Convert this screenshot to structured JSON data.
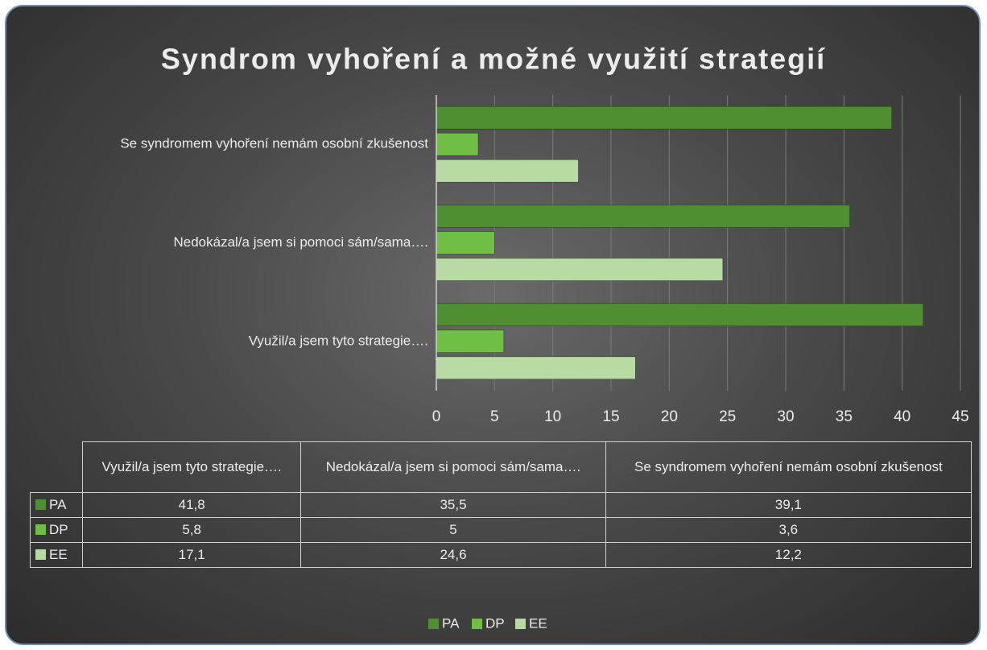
{
  "chart_data": {
    "type": "bar",
    "orientation": "horizontal",
    "title": "Syndrom vyhoření a možné využití strategií",
    "categories": [
      "Využil/a jsem tyto strategie….",
      "Nedokázal/a jsem si pomoci sám/sama….",
      "Se syndromem vyhoření nemám osobní zkušenost"
    ],
    "series": [
      {
        "name": "PA",
        "color": "#4f8f31",
        "values": [
          41.8,
          35.5,
          39.1
        ],
        "value_labels": [
          "41,8",
          "35,5",
          "39,1"
        ]
      },
      {
        "name": "DP",
        "color": "#70bf45",
        "values": [
          5.8,
          5,
          3.6
        ],
        "value_labels": [
          "5,8",
          "5",
          "3,6"
        ]
      },
      {
        "name": "EE",
        "color": "#b7dba2",
        "values": [
          17.1,
          24.6,
          12.2
        ],
        "value_labels": [
          "17,1",
          "24,6",
          "12,2"
        ]
      }
    ],
    "xlim": [
      0,
      45
    ],
    "xticks": [
      0,
      5,
      10,
      15,
      20,
      25,
      30,
      35,
      40,
      45
    ],
    "grid": true,
    "legend": "bottom",
    "data_table": true
  }
}
